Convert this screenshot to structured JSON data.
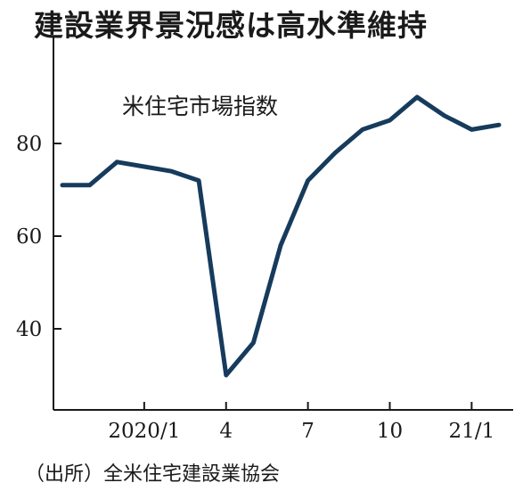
{
  "title": "建設業界景況感は高水準維持",
  "source": "（出所）全米住宅建設業協会",
  "chart_data": {
    "type": "line",
    "series": [
      {
        "name": "米住宅市場指数",
        "color": "#163b5c",
        "values": [
          71,
          71,
          76,
          75,
          74,
          72,
          30,
          37,
          58,
          72,
          78,
          83,
          85,
          90,
          86,
          83,
          84
        ]
      }
    ],
    "x": [
      0,
      1,
      2,
      3,
      4,
      5,
      6,
      7,
      8,
      9,
      10,
      11,
      12,
      13,
      14,
      15,
      16
    ],
    "x_ticks": [
      {
        "i": 3,
        "label": "2020/1"
      },
      {
        "i": 6,
        "label": "4"
      },
      {
        "i": 9,
        "label": "7"
      },
      {
        "i": 12,
        "label": "10"
      },
      {
        "i": 15,
        "label": "21/1"
      }
    ],
    "y_ticks": [
      40,
      60,
      80
    ],
    "ylim": [
      25,
      95
    ],
    "grid": false,
    "title": "建設業界景況感は高水準維持"
  }
}
